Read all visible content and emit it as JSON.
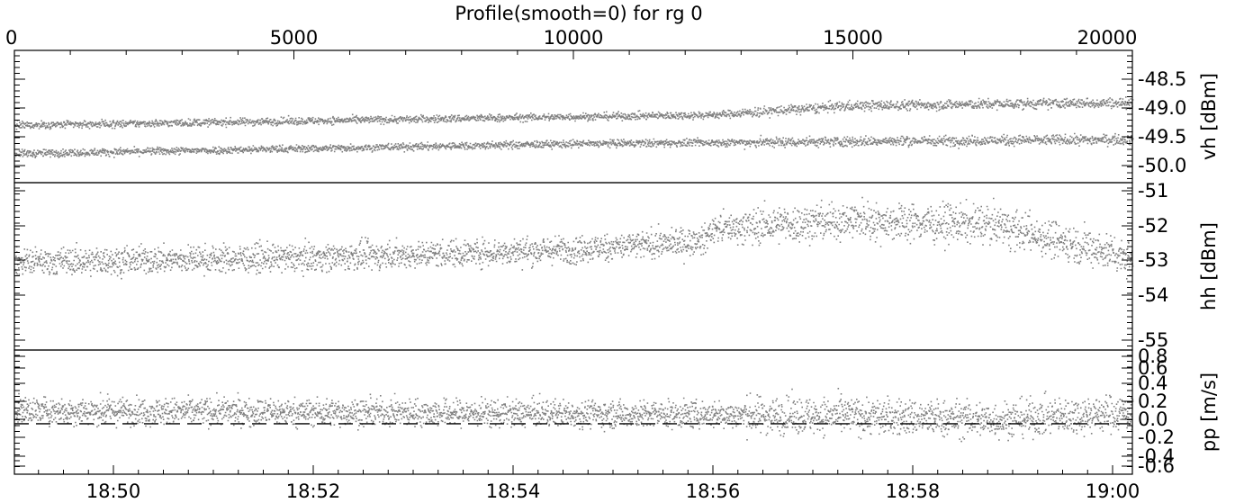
{
  "chart_data": {
    "type": "scatter",
    "title": "Profile(smooth=0) for rg 0",
    "top_axis": {
      "range": [
        0,
        20000
      ],
      "ticks": [
        "0",
        "5000",
        "10000",
        "15000",
        "20000"
      ]
    },
    "bottom_axis": {
      "ticks": [
        "18:50",
        "18:52",
        "18:54",
        "18:56",
        "18:58",
        "19:00"
      ]
    },
    "panels": [
      {
        "ylabel": "vh [dBm]",
        "ylim": [
          -50.35,
          -48.2
        ],
        "ticks": [
          "-48.5",
          "-49.0",
          "-49.5",
          "-50.0"
        ],
        "series": [
          {
            "band": "upper",
            "x": [
              0,
              5000,
              10000,
              12500,
              15000,
              20000
            ],
            "y": [
              -49.42,
              -49.35,
              -49.28,
              -49.25,
              -49.1,
              -49.05
            ]
          },
          {
            "band": "lower",
            "x": [
              0,
              5000,
              10000,
              12500,
              15000,
              20000
            ],
            "y": [
              -49.88,
              -49.8,
              -49.72,
              -49.7,
              -49.68,
              -49.65
            ]
          }
        ]
      },
      {
        "ylabel": "hh [dBm]",
        "ylim": [
          -55,
          -51
        ],
        "ticks": [
          "-51",
          "-52",
          "-53",
          "-54",
          "-55"
        ],
        "series": [
          {
            "band": "main",
            "x": [
              0,
              5000,
              10000,
              12300,
              12500,
              15000,
              17500,
              20000
            ],
            "y": [
              -52.9,
              -52.8,
              -52.6,
              -52.4,
              -52.1,
              -51.9,
              -52.0,
              -52.8
            ]
          }
        ]
      },
      {
        "ylabel": "pp [m/s]",
        "ylim": [
          -0.65,
          0.95
        ],
        "ticks": [
          "0.8",
          "0.6",
          "0.4",
          "0.2",
          "0.0",
          "-0.2",
          "-0.4",
          "-0.6"
        ],
        "reference_line": 0.0,
        "series": [
          {
            "band": "main",
            "x": [
              0,
              5000,
              10000,
              15000,
              17500,
              20000
            ],
            "y": [
              0.17,
              0.15,
              0.13,
              0.1,
              0.05,
              0.15
            ]
          }
        ]
      }
    ],
    "point_color": "#808080"
  }
}
